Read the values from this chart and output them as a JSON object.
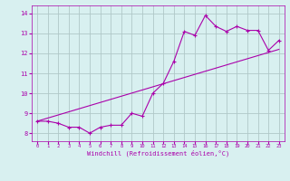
{
  "xlabel": "Windchill (Refroidissement éolien,°C)",
  "bg_color": "#d8f0f0",
  "grid_color": "#b0c8c8",
  "line_color": "#aa00aa",
  "xlim": [
    -0.5,
    23.5
  ],
  "ylim": [
    7.6,
    14.4
  ],
  "xticks": [
    0,
    1,
    2,
    3,
    4,
    5,
    6,
    7,
    8,
    9,
    10,
    11,
    12,
    13,
    14,
    15,
    16,
    17,
    18,
    19,
    20,
    21,
    22,
    23
  ],
  "yticks": [
    8,
    9,
    10,
    11,
    12,
    13,
    14
  ],
  "series1_x": [
    0,
    1,
    2,
    3,
    4,
    5,
    6,
    7,
    8,
    9,
    10,
    11,
    12,
    13,
    14,
    15,
    16,
    17,
    18,
    19,
    20,
    21,
    22,
    23
  ],
  "series1_y": [
    8.6,
    8.6,
    8.5,
    8.3,
    8.3,
    8.0,
    8.3,
    8.4,
    8.4,
    9.0,
    8.85,
    10.0,
    10.5,
    11.6,
    13.1,
    12.9,
    13.9,
    13.35,
    13.1,
    13.35,
    13.15,
    13.15,
    12.15,
    12.65
  ],
  "series2_x": [
    0,
    23
  ],
  "series2_y": [
    8.6,
    12.2
  ]
}
